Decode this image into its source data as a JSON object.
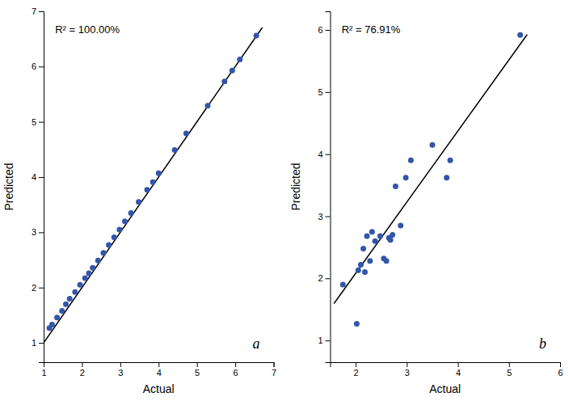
{
  "chart_data": [
    {
      "type": "scatter",
      "xlabel": "Actual",
      "ylabel": "Predicted",
      "annotations": [
        "R² = 100.00%",
        "a"
      ],
      "xlim": [
        1.0,
        7.0
      ],
      "ylim": [
        0.65,
        7.0
      ],
      "xticks": [
        1,
        2,
        3,
        4,
        5,
        6,
        7
      ],
      "yticks": [
        1,
        2,
        3,
        4,
        5,
        6,
        7
      ],
      "grid": false,
      "series": [
        {
          "type": "line",
          "color": "#000000",
          "x": [
            1.0,
            6.7
          ],
          "values": [
            1.0,
            6.7
          ]
        },
        {
          "type": "scatter",
          "color": "#3355aa",
          "x": [
            1.15,
            1.22,
            1.35,
            1.48,
            1.58,
            1.68,
            1.82,
            1.95,
            2.08,
            2.18,
            2.28,
            2.42,
            2.56,
            2.7,
            2.84,
            2.98,
            3.12,
            3.28,
            3.48,
            3.7,
            3.85,
            4.0,
            4.42,
            4.72,
            5.28,
            5.72,
            5.92,
            6.12,
            6.55
          ],
          "values": [
            1.27,
            1.33,
            1.46,
            1.58,
            1.7,
            1.8,
            1.92,
            2.05,
            2.17,
            2.26,
            2.36,
            2.49,
            2.63,
            2.77,
            2.91,
            3.05,
            3.2,
            3.35,
            3.55,
            3.77,
            3.91,
            4.07,
            4.49,
            4.79,
            5.29,
            5.73,
            5.93,
            6.13,
            6.56
          ]
        }
      ]
    },
    {
      "type": "scatter",
      "xlabel": "Actual",
      "ylabel": "Predicted",
      "annotations": [
        "R² = 76.91%",
        "b"
      ],
      "xlim": [
        1.5,
        6.0
      ],
      "ylim": [
        0.65,
        6.3
      ],
      "xticks": [
        2,
        3,
        4,
        5,
        6
      ],
      "yticks": [
        1,
        2,
        3,
        4,
        5,
        6
      ],
      "grid": false,
      "series": [
        {
          "type": "line",
          "color": "#000000",
          "x": [
            1.58,
            5.35
          ],
          "values": [
            1.6,
            5.92
          ]
        },
        {
          "type": "scatter",
          "color": "#3355aa",
          "x": [
            1.75,
            2.02,
            2.05,
            2.1,
            2.15,
            2.18,
            2.22,
            2.28,
            2.32,
            2.38,
            2.48,
            2.55,
            2.6,
            2.65,
            2.68,
            2.72,
            2.78,
            2.88,
            2.98,
            3.08,
            3.5,
            3.78,
            3.85,
            5.22
          ],
          "values": [
            1.9,
            1.27,
            2.13,
            2.22,
            2.48,
            2.1,
            2.68,
            2.28,
            2.75,
            2.6,
            2.68,
            2.32,
            2.28,
            2.65,
            2.62,
            2.7,
            3.48,
            2.85,
            3.62,
            3.9,
            4.15,
            3.62,
            3.9,
            5.92
          ]
        }
      ]
    }
  ]
}
